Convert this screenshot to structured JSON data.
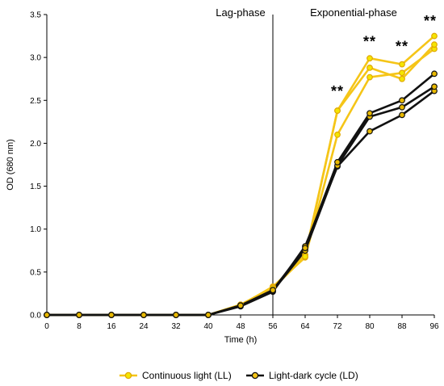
{
  "chart_data": {
    "type": "line",
    "xlabel": "Time (h)",
    "ylabel": "OD (680 nm)",
    "x": [
      0,
      8,
      16,
      24,
      32,
      40,
      48,
      56,
      64,
      72,
      80,
      88,
      96
    ],
    "xticks": [
      "0",
      "8",
      "16",
      "24",
      "32",
      "40",
      "48",
      "56",
      "64",
      "72",
      "80",
      "88",
      "96"
    ],
    "yticks": [
      "0.0",
      "0.5",
      "1.0",
      "1.5",
      "2.0",
      "2.5",
      "3.0",
      "3.5"
    ],
    "xlim": [
      0,
      96
    ],
    "ylim": [
      0,
      3.5
    ],
    "grid": false,
    "legend_position": "bottom",
    "divider_x": 56,
    "phases": [
      {
        "label": "Lag-phase",
        "x": 48
      },
      {
        "label": "Exponential-phase",
        "x": 76
      }
    ],
    "significance": [
      {
        "x": 72,
        "y": 2.55,
        "label": "**"
      },
      {
        "x": 80,
        "y": 3.13,
        "label": "**"
      },
      {
        "x": 88,
        "y": 3.07,
        "label": "**"
      },
      {
        "x": 96,
        "y": 3.37,
        "label": "**"
      }
    ],
    "series": [
      {
        "name": "Continuous light (LL)",
        "group": "LL",
        "color": "#F5C518",
        "values": [
          0,
          0,
          0,
          0,
          0,
          0,
          0.11,
          0.33,
          0.67,
          2.1,
          2.77,
          2.82,
          3.1
        ]
      },
      {
        "name": "",
        "group": "LL",
        "color": "#F5C518",
        "values": [
          0,
          0,
          0,
          0,
          0,
          0,
          0.12,
          0.32,
          0.7,
          2.38,
          2.99,
          2.92,
          3.25
        ]
      },
      {
        "name": "",
        "group": "LL",
        "color": "#F5C518",
        "values": [
          0,
          0,
          0,
          0,
          0,
          0,
          0.12,
          0.31,
          0.68,
          2.38,
          2.88,
          2.75,
          3.15
        ]
      },
      {
        "name": "Light-dark cycle (LD)",
        "group": "LD",
        "color": "#111111",
        "values": [
          0,
          0,
          0,
          0,
          0,
          0,
          0.1,
          0.27,
          0.8,
          1.73,
          2.14,
          2.33,
          2.61
        ]
      },
      {
        "name": "",
        "group": "LD",
        "color": "#111111",
        "values": [
          0,
          0,
          0,
          0,
          0,
          0,
          0.11,
          0.28,
          0.75,
          1.74,
          2.31,
          2.42,
          2.66
        ]
      },
      {
        "name": "",
        "group": "LD",
        "color": "#111111",
        "values": [
          0,
          0,
          0,
          0,
          0,
          0,
          0.11,
          0.29,
          0.78,
          1.78,
          2.35,
          2.5,
          2.81
        ]
      }
    ],
    "legend": [
      {
        "label": "Continuous light (LL)",
        "line_color": "#F5C518",
        "fill": "#F5E600",
        "stroke": "#E0A800"
      },
      {
        "label": "Light-dark cycle (LD)",
        "line_color": "#111111",
        "fill": "#F5C518",
        "stroke": "#111111"
      }
    ],
    "marker_styles": {
      "LL": {
        "fill": "#F5E600",
        "stroke": "#E0A800"
      },
      "LD": {
        "fill": "#E8B800",
        "stroke": "#111111"
      }
    }
  }
}
